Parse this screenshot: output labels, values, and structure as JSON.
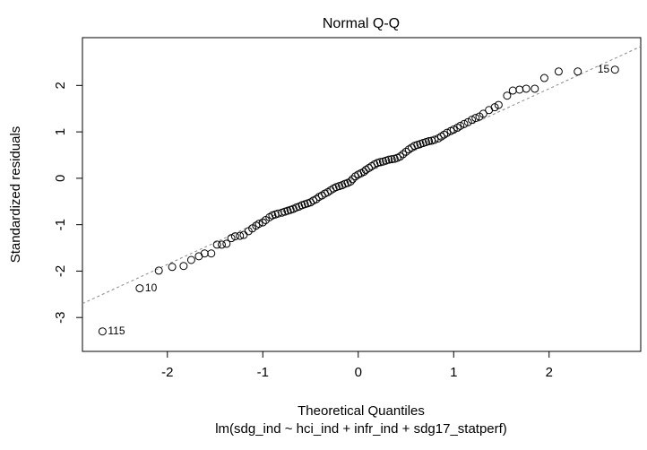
{
  "chart_data": {
    "type": "scatter",
    "title": "Normal Q-Q",
    "x_label": "Theoretical Quantiles",
    "subtitle": "lm(sdg_ind ~ hci_ind + infr_ind + sdg17_statperf)",
    "y_label": "Standardized residuals",
    "xlim": [
      -2.89,
      2.96
    ],
    "ylim": [
      -3.73,
      3.03
    ],
    "xticks": [
      -2,
      -1,
      0,
      1,
      2
    ],
    "yticks": [
      -3,
      -2,
      -1,
      0,
      1,
      2
    ],
    "color": "#000000",
    "x": [
      -2.68,
      -2.29,
      -2.09,
      -1.95,
      -1.83,
      -1.75,
      -1.67,
      -1.61,
      -1.54,
      -1.48,
      -1.43,
      -1.38,
      -1.33,
      -1.29,
      -1.24,
      -1.2,
      -1.15,
      -1.11,
      -1.07,
      -1.04,
      -1.0,
      -0.97,
      -0.93,
      -0.9,
      -0.87,
      -0.84,
      -0.8,
      -0.77,
      -0.74,
      -0.71,
      -0.68,
      -0.65,
      -0.62,
      -0.59,
      -0.56,
      -0.53,
      -0.5,
      -0.47,
      -0.44,
      -0.41,
      -0.38,
      -0.35,
      -0.32,
      -0.29,
      -0.26,
      -0.23,
      -0.2,
      -0.17,
      -0.14,
      -0.11,
      -0.08,
      -0.06,
      -0.03,
      0.0,
      0.03,
      0.06,
      0.08,
      0.11,
      0.14,
      0.17,
      0.2,
      0.23,
      0.26,
      0.29,
      0.32,
      0.35,
      0.38,
      0.41,
      0.44,
      0.47,
      0.5,
      0.53,
      0.56,
      0.59,
      0.62,
      0.65,
      0.68,
      0.71,
      0.74,
      0.77,
      0.8,
      0.84,
      0.87,
      0.9,
      0.93,
      0.97,
      1.0,
      1.04,
      1.07,
      1.11,
      1.15,
      1.19,
      1.23,
      1.27,
      1.31,
      1.37,
      1.43,
      1.47,
      1.56,
      1.62,
      1.69,
      1.76,
      1.85,
      1.95,
      2.1,
      2.3,
      2.69
    ],
    "y": [
      -3.3,
      -2.37,
      -1.99,
      -1.91,
      -1.89,
      -1.76,
      -1.68,
      -1.62,
      -1.62,
      -1.43,
      -1.43,
      -1.41,
      -1.29,
      -1.25,
      -1.24,
      -1.22,
      -1.14,
      -1.08,
      -1.02,
      -0.98,
      -0.95,
      -0.9,
      -0.84,
      -0.8,
      -0.78,
      -0.76,
      -0.74,
      -0.72,
      -0.7,
      -0.68,
      -0.66,
      -0.63,
      -0.61,
      -0.58,
      -0.56,
      -0.54,
      -0.52,
      -0.48,
      -0.45,
      -0.4,
      -0.37,
      -0.33,
      -0.3,
      -0.26,
      -0.22,
      -0.19,
      -0.17,
      -0.15,
      -0.12,
      -0.1,
      -0.07,
      -0.02,
      0.04,
      0.08,
      0.11,
      0.14,
      0.18,
      0.22,
      0.26,
      0.3,
      0.33,
      0.35,
      0.36,
      0.38,
      0.4,
      0.41,
      0.42,
      0.44,
      0.47,
      0.52,
      0.57,
      0.62,
      0.66,
      0.7,
      0.72,
      0.74,
      0.76,
      0.78,
      0.8,
      0.81,
      0.83,
      0.86,
      0.9,
      0.94,
      0.98,
      1.02,
      1.05,
      1.09,
      1.13,
      1.17,
      1.21,
      1.26,
      1.3,
      1.33,
      1.39,
      1.47,
      1.53,
      1.58,
      1.78,
      1.89,
      1.91,
      1.93,
      1.93,
      2.16,
      2.3,
      2.3,
      2.34
    ],
    "reference_line": {
      "x": [
        -2.89,
        2.96
      ],
      "y": [
        -2.7,
        2.84
      ],
      "color": "#888888"
    },
    "annotations": [
      {
        "text": "115",
        "x": -2.68,
        "y": -3.3,
        "side": "right"
      },
      {
        "text": "10",
        "x": -2.29,
        "y": -2.37,
        "side": "right"
      },
      {
        "text": "15",
        "x": 2.69,
        "y": 2.34,
        "side": "left"
      }
    ]
  }
}
